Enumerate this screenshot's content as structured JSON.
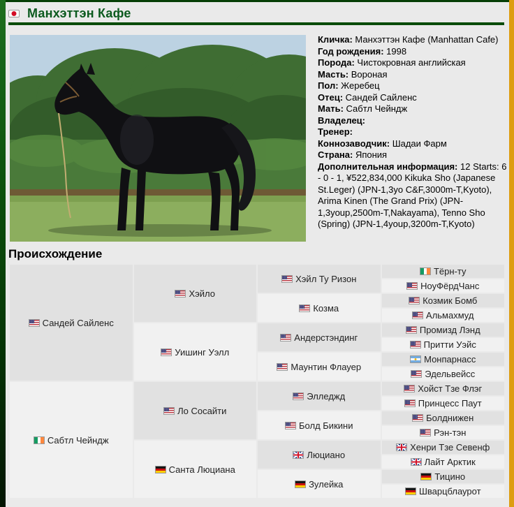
{
  "header": {
    "title": "Манхэттэн Кафе",
    "flag": "jp"
  },
  "info": {
    "lines": [
      {
        "label": "Кличка:",
        "value": "Манхэттэн Кафе (Manhattan Cafe)"
      },
      {
        "label": "Год рождения:",
        "value": "1998"
      },
      {
        "label": "Порода:",
        "value": "Чистокровная английская"
      },
      {
        "label": "Масть:",
        "value": "Вороная"
      },
      {
        "label": "Пол:",
        "value": "Жеребец"
      },
      {
        "label": "Отец:",
        "value": "Сандей Сайленс"
      },
      {
        "label": "Мать:",
        "value": "Сабтл Чейндж"
      },
      {
        "label": "Владелец:",
        "value": ""
      },
      {
        "label": "Тренер:",
        "value": ""
      },
      {
        "label": "Коннозаводчик:",
        "value": "Шадаи Фарм"
      },
      {
        "label": "Страна:",
        "value": "Япония"
      },
      {
        "label": "Дополнительная информация:",
        "value": "12 Starts: 6 - 0 - 1, ¥522,834,000 Kikuka Sho (Japanese St.Leger) (JPN-1,3yo C&F,3000m-T,Kyoto), Arima Kinen (The Grand Prix) (JPN-1,3youp,2500m-T,Nakayama), Tenno Sho (Spring) (JPN-1,4youp,3200m-T,Kyoto)"
      }
    ]
  },
  "pedigree": {
    "heading": "Происхождение",
    "rows": 16,
    "generations": [
      {
        "span": 8,
        "cells": [
          {
            "name": "Сандей Сайленс",
            "flag": "us"
          },
          {
            "name": "Сабтл Чейндж",
            "flag": "ie"
          }
        ]
      },
      {
        "span": 4,
        "cells": [
          {
            "name": "Хэйло",
            "flag": "us"
          },
          {
            "name": "Уишинг Уэлл",
            "flag": "us"
          },
          {
            "name": "Ло Сосайти",
            "flag": "us"
          },
          {
            "name": "Санта Люциана",
            "flag": "de"
          }
        ]
      },
      {
        "span": 2,
        "cells": [
          {
            "name": "Хэйл Ту Ризон",
            "flag": "us"
          },
          {
            "name": "Козма",
            "flag": "us"
          },
          {
            "name": "Андерстэндинг",
            "flag": "us"
          },
          {
            "name": "Маунтин Флауер",
            "flag": "us"
          },
          {
            "name": "Элледжд",
            "flag": "us"
          },
          {
            "name": "Болд Бикини",
            "flag": "us"
          },
          {
            "name": "Люциано",
            "flag": "gb"
          },
          {
            "name": "Зулейка",
            "flag": "de"
          }
        ]
      },
      {
        "span": 1,
        "cells": [
          {
            "name": "Тёрн-ту",
            "flag": "ie"
          },
          {
            "name": "НоуФёрдЧанс",
            "flag": "us"
          },
          {
            "name": "Козмик Бомб",
            "flag": "us"
          },
          {
            "name": "Альмахмуд",
            "flag": "us"
          },
          {
            "name": "Промизд Лэнд",
            "flag": "us"
          },
          {
            "name": "Притти Уэйс",
            "flag": "us"
          },
          {
            "name": "Монпарнасс",
            "flag": "ar"
          },
          {
            "name": "Эдельвейсс",
            "flag": "us"
          },
          {
            "name": "Хойст Тзе Флэг",
            "flag": "us"
          },
          {
            "name": "Принцесс Паут",
            "flag": "us"
          },
          {
            "name": "Болднижен",
            "flag": "us"
          },
          {
            "name": "Рэн-тэн",
            "flag": "us"
          },
          {
            "name": "Хенри Тзе Севенф",
            "flag": "gb"
          },
          {
            "name": "Лайт Арктик",
            "flag": "gb"
          },
          {
            "name": "Тицино",
            "flag": "de"
          },
          {
            "name": "Шварцблаурот",
            "flag": "de"
          }
        ]
      }
    ]
  },
  "colors": {
    "accent-green": "#0b5a1e",
    "rule-green": "#0a4c0a",
    "border-orange": "#dd9d10",
    "cell-gray": "#e1e1e1",
    "cell-light": "#f1f1f1",
    "page-bg": "#eaeaea"
  }
}
